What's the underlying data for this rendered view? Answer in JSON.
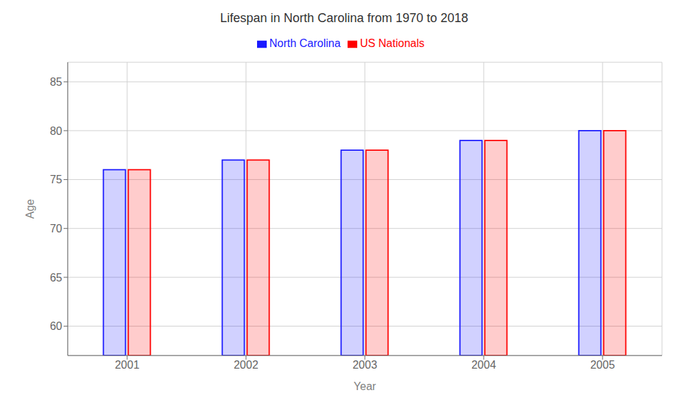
{
  "chart_data": {
    "type": "bar",
    "title": "Lifespan in North Carolina from 1970 to 2018",
    "x_label": "Year",
    "y_label": "Age",
    "categories": [
      2001,
      2002,
      2003,
      2004,
      2005
    ],
    "series": [
      {
        "name": "North Carolina",
        "color": "#1a1aff",
        "values": [
          76,
          77,
          78,
          79,
          80
        ]
      },
      {
        "name": "US Nationals",
        "color": "#ff0000",
        "values": [
          76,
          77,
          78,
          79,
          80
        ]
      }
    ],
    "ylim": [
      57,
      87
    ],
    "yticks": [
      60,
      65,
      70,
      75,
      80,
      85
    ],
    "grid": true,
    "legend": "top"
  }
}
